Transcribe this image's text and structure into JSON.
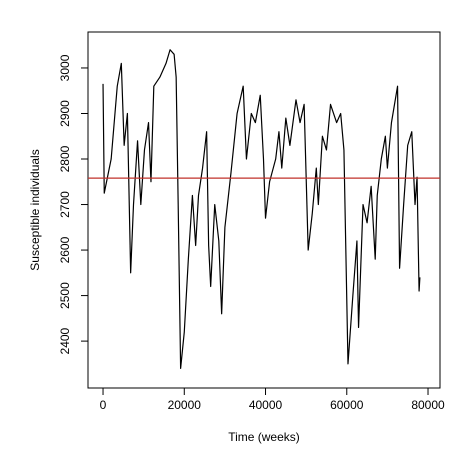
{
  "chart_data": {
    "type": "line",
    "x_label": "Time (weeks)",
    "y_label": "Susceptible individuals",
    "xlim": [
      -3700,
      82950
    ],
    "ylim": [
      2297,
      3079
    ],
    "xticks": [
      0,
      20000,
      40000,
      60000,
      80000
    ],
    "yticks": [
      2400,
      2500,
      2600,
      2700,
      2800,
      2900,
      3000
    ],
    "reference_line": {
      "value": 2758,
      "color": "#c0302a"
    },
    "series": [
      {
        "color": "#000000",
        "x": [
          0,
          300,
          2000,
          3500,
          4500,
          5200,
          6000,
          6800,
          7500,
          8500,
          9300,
          10200,
          11200,
          11800,
          12500,
          14000,
          15500,
          16500,
          17500,
          18000,
          18500,
          19100,
          20000,
          21000,
          22000,
          22800,
          23500,
          24500,
          25500,
          26000,
          26500,
          27500,
          28500,
          29200,
          30000,
          31500,
          33000,
          34500,
          35300,
          36500,
          37500,
          38700,
          39500,
          40000,
          41000,
          42500,
          43300,
          44000,
          45000,
          46000,
          47500,
          48500,
          49500,
          50500,
          51500,
          52500,
          53000,
          54000,
          55000,
          56000,
          57500,
          58500,
          59300,
          60300,
          61500,
          62500,
          62900,
          64000,
          65000,
          66000,
          67000,
          67500,
          68500,
          69500,
          70000,
          71000,
          72500,
          73000,
          74000,
          75000,
          76000,
          76800,
          77300,
          77800,
          78000
        ],
        "values": [
          2965,
          2725,
          2800,
          2960,
          3010,
          2830,
          2900,
          2550,
          2700,
          2840,
          2700,
          2820,
          2880,
          2750,
          2960,
          2980,
          3010,
          3040,
          3030,
          2980,
          2700,
          2340,
          2420,
          2580,
          2720,
          2610,
          2720,
          2780,
          2860,
          2610,
          2520,
          2700,
          2620,
          2460,
          2650,
          2770,
          2900,
          2960,
          2800,
          2900,
          2880,
          2940,
          2800,
          2670,
          2750,
          2800,
          2860,
          2780,
          2890,
          2830,
          2930,
          2880,
          2920,
          2600,
          2680,
          2780,
          2700,
          2850,
          2820,
          2920,
          2880,
          2900,
          2820,
          2350,
          2500,
          2620,
          2430,
          2700,
          2660,
          2740,
          2580,
          2720,
          2800,
          2850,
          2780,
          2880,
          2960,
          2560,
          2700,
          2830,
          2860,
          2700,
          2760,
          2510,
          2540
        ]
      }
    ]
  }
}
